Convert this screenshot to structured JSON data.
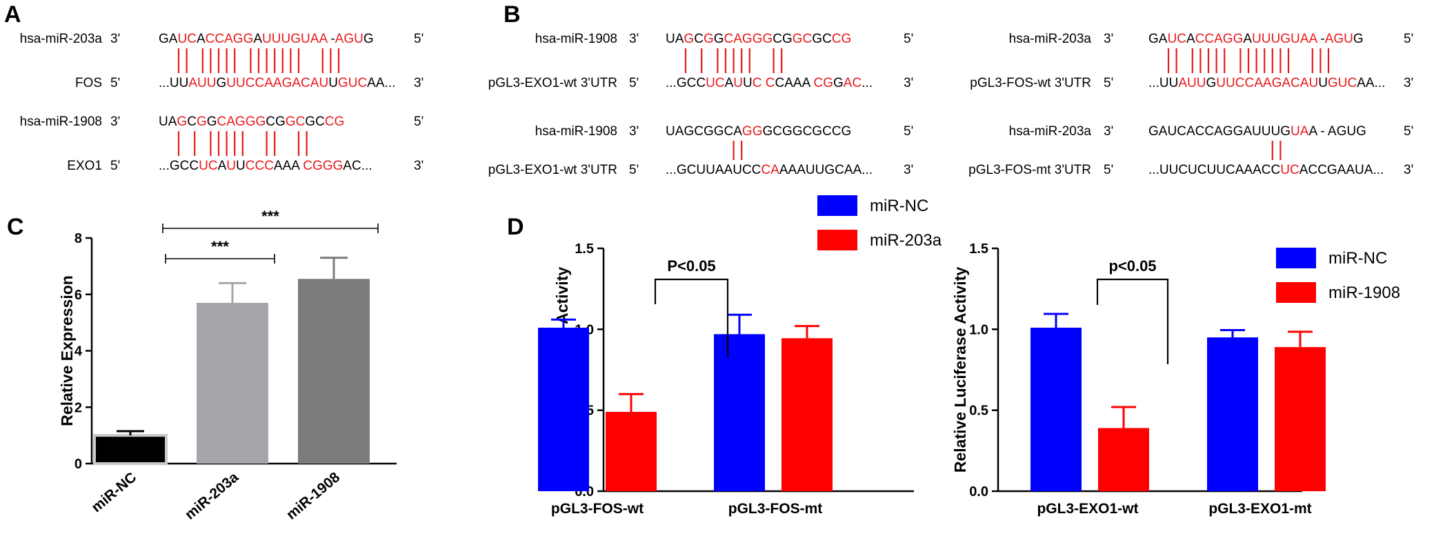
{
  "panels": {
    "a": "A",
    "b": "B",
    "c": "C",
    "d": "D"
  },
  "sequences": {
    "a": [
      {
        "name": "hsa-miR-203a",
        "end_left": "3'",
        "seq": "GAUCACCAGGAUUUGUAA -AGUG",
        "red": [
          2,
          3,
          5,
          6,
          7,
          8,
          9,
          11,
          12,
          13,
          14,
          15,
          16,
          17,
          20,
          21,
          22
        ],
        "end_right": "5'"
      },
      {
        "name": "FOS",
        "end_left": "5'",
        "seq": "...UUAUUGUUCCAAGACAUUGUCAA...",
        "red": [
          5,
          6,
          7,
          9,
          10,
          11,
          12,
          13,
          14,
          15,
          16,
          17,
          18,
          19,
          21,
          22,
          23
        ],
        "end_right": "3'"
      },
      {
        "name": "hsa-miR-1908",
        "end_left": "3'",
        "seq": "UAGCGGCAGGGCGGCGCCG",
        "red": [
          2,
          4,
          6,
          7,
          8,
          9,
          10,
          13,
          14,
          17,
          18
        ],
        "end_right": "5'"
      },
      {
        "name": "EXO1",
        "end_left": "5'",
        "seq": "...GCCUCAUUCCCAAA CGGGAC...",
        "red": [
          6,
          7,
          9,
          11,
          12,
          13,
          17,
          18,
          19,
          20,
          21
        ],
        "end_right": "3'"
      }
    ],
    "b_left": [
      {
        "name": "hsa-miR-1908",
        "end_left": "3'",
        "seq": "UAGCGGCAGGGCGGCGCCG",
        "red": [
          2,
          4,
          6,
          7,
          8,
          9,
          10,
          13,
          14,
          17,
          18
        ],
        "end_right": "5'"
      },
      {
        "name": "pGL3-EXO1-wt 3'UTR",
        "end_left": "5'",
        "seq": "...GCCUCAUUC CCAAA CGGAC...",
        "red": [
          6,
          7,
          9,
          11,
          13,
          19,
          20,
          22,
          23
        ],
        "end_right": "3'"
      },
      {
        "name": "hsa-miR-1908",
        "end_left": "3'",
        "seq": "UAGCGGCAGGGCGGCGCCG",
        "red": [
          8,
          9
        ],
        "end_right": "5'"
      },
      {
        "name": "pGL3-EXO1-wt 3'UTR",
        "end_left": "5'",
        "seq": "...GCUUAAUCCCAAAAUUGCAA...",
        "red": [
          12,
          13
        ],
        "end_right": "3'"
      }
    ],
    "b_right": [
      {
        "name": "hsa-miR-203a",
        "end_left": "3'",
        "seq": "GAUCACCAGGAUUUGUAA -AGUG",
        "red": [
          2,
          3,
          5,
          6,
          7,
          8,
          9,
          11,
          12,
          13,
          14,
          15,
          16,
          17,
          20,
          21,
          22
        ],
        "end_right": "5'"
      },
      {
        "name": "pGL3-FOS-wt 3'UTR",
        "end_left": "5'",
        "seq": "...UUAUUGUUCCAAGACAUUGUCAA...",
        "red": [
          5,
          6,
          7,
          9,
          10,
          11,
          12,
          13,
          14,
          15,
          16,
          17,
          18,
          19,
          21,
          22,
          23
        ],
        "end_right": "3'"
      },
      {
        "name": "hsa-miR-203a",
        "end_left": "3'",
        "seq": "GAUCACCAGGAUUUGUAA - AGUG",
        "red": [
          15,
          16
        ],
        "end_right": "5'"
      },
      {
        "name": "pGL3-FOS-mt 3'UTR",
        "end_left": "5'",
        "seq": "...UUCUCUUCAAACCUCACCGAAUA...",
        "red": [
          16,
          17
        ],
        "end_right": "3'"
      }
    ]
  },
  "chart_data": [
    {
      "type": "bar",
      "panel": "C",
      "categories": [
        "miR-NC",
        "miR-203a",
        "miR-1908"
      ],
      "values": [
        1.0,
        5.7,
        6.55
      ],
      "errors": [
        0.15,
        0.7,
        0.75
      ],
      "colors": [
        "#000000",
        "#a6a6aa",
        "#7b7b7b"
      ],
      "ylabel": "Relative Expression",
      "ylim": [
        0,
        8
      ],
      "yticks": [
        "0",
        "2",
        "4",
        "6",
        "8"
      ],
      "significance": [
        {
          "from": "miR-NC",
          "to": "miR-203a",
          "label": "***"
        },
        {
          "from": "miR-NC",
          "to": "miR-1908",
          "label": "***"
        }
      ]
    },
    {
      "type": "bar",
      "panel": "D",
      "categories": [
        "pGL3-FOS-wt",
        "pGL3-FOS-mt"
      ],
      "series": [
        {
          "name": "miR-NC",
          "color": "#0000ff",
          "values": [
            1.01,
            0.97
          ],
          "errors": [
            0.05,
            0.12
          ]
        },
        {
          "name": "miR-203a",
          "color": "#ff0000",
          "values": [
            0.49,
            0.945
          ],
          "errors": [
            0.11,
            0.075
          ]
        }
      ],
      "ylabel": "Relative Luciferase Activity",
      "ylim": [
        0,
        1.5
      ],
      "yticks": [
        "0.0",
        "0.5",
        "1.0",
        "1.5"
      ],
      "significance": [
        {
          "category": "pGL3-FOS-wt",
          "label": "P<0.05"
        }
      ]
    },
    {
      "type": "bar",
      "panel": "D",
      "categories": [
        "pGL3-EXO1-wt",
        "pGL3-EXO1-mt"
      ],
      "series": [
        {
          "name": "miR-NC",
          "color": "#0000ff",
          "values": [
            1.01,
            0.95
          ],
          "errors": [
            0.085,
            0.045
          ]
        },
        {
          "name": "miR-1908",
          "color": "#ff0000",
          "values": [
            0.39,
            0.89
          ],
          "errors": [
            0.13,
            0.095
          ]
        }
      ],
      "ylabel": "Relative Luciferase Activity",
      "ylim": [
        0,
        1.5
      ],
      "yticks": [
        "0.0",
        "0.5",
        "1.0",
        "1.5"
      ],
      "significance": [
        {
          "category": "pGL3-EXO1-wt",
          "label": "p<0.05"
        }
      ]
    }
  ]
}
